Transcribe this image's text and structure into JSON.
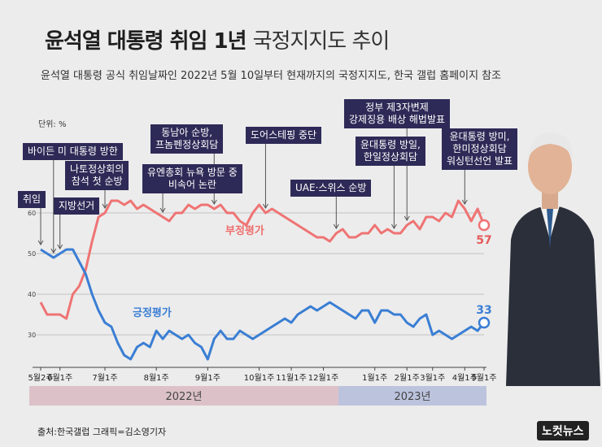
{
  "title_bold": "윤석열 대통령 취임 1년",
  "title_light": "국정지지도 추이",
  "subtitle": "윤석열 대통령 공식 취임날짜인 2022년 5월 10일부터 현재까지의 국정지지도, 한국 갤럽 홈페이지 참조",
  "unit_label": "단위: %",
  "source": "출처:한국갤럽  그래픽=김소영기자",
  "logo": "노컷뉴스",
  "annotations": [
    {
      "id": "ann-inauguration",
      "text": "취임",
      "week": 0
    },
    {
      "id": "ann-biden",
      "text": "바이든 미 대통령 방한",
      "week": 2
    },
    {
      "id": "ann-local-election",
      "text": "지방선거",
      "week": 3
    },
    {
      "id": "ann-nato",
      "text": "나토정상회의\n참석 첫 순방",
      "week": 10
    },
    {
      "id": "ann-un",
      "text": "유엔총회 뉴욕 방문 중\n비속어 논란",
      "week": 19
    },
    {
      "id": "ann-asean",
      "text": "동남아 순방,\n프놈펜정상회담",
      "week": 27
    },
    {
      "id": "ann-doorstep",
      "text": "도어스테핑 중단",
      "week": 35
    },
    {
      "id": "ann-uae",
      "text": "UAE·스위스 순방",
      "week": 46
    },
    {
      "id": "ann-japan",
      "text": "윤대통령 방일,\n한일정상회담",
      "week": 55
    },
    {
      "id": "ann-forced-labor",
      "text": "정부 제3자변제\n강제징용 배상 해법발표",
      "week": 57
    },
    {
      "id": "ann-us-visit",
      "text": "윤대통령 방미,\n한미정상회담\n워싱턴선언 발표",
      "week": 66
    }
  ],
  "chart_data": {
    "type": "line",
    "x_ticks": [
      "5월2주",
      "6월1주",
      "7월1주",
      "8월1주",
      "9월1주",
      "10월1주",
      "11월1주",
      "12월1주",
      "1월1주",
      "2월1주",
      "3월1주",
      "4월1주",
      "5월1주"
    ],
    "y_ticks": [
      30,
      40,
      50,
      60
    ],
    "ylim": [
      23,
      66
    ],
    "years": [
      "2022년",
      "2023년"
    ],
    "series": [
      {
        "name": "부정평가",
        "color": "#ef7373",
        "end_label": "57",
        "values": [
          38,
          35,
          35,
          35,
          34,
          40,
          42,
          46,
          53,
          59,
          60,
          63,
          63,
          62,
          63,
          61,
          62,
          61,
          60,
          59,
          58,
          60,
          60,
          62,
          61,
          62,
          62,
          61,
          62,
          60,
          60,
          58,
          57,
          60,
          62,
          60,
          61,
          60,
          59,
          58,
          57,
          56,
          55,
          54,
          54,
          53,
          55,
          56,
          54,
          54,
          55,
          55,
          57,
          55,
          56,
          55,
          55,
          57,
          58,
          56,
          59,
          59,
          58,
          60,
          59,
          63,
          61,
          58,
          61,
          57
        ]
      },
      {
        "name": "긍정평가",
        "color": "#3a7ed4",
        "end_label": "33",
        "values": [
          51,
          50,
          49,
          50,
          51,
          51,
          48,
          45,
          40,
          36,
          33,
          32,
          28,
          25,
          24,
          27,
          28,
          27,
          31,
          29,
          31,
          30,
          29,
          30,
          28,
          27,
          24,
          29,
          31,
          29,
          29,
          31,
          30,
          29,
          30,
          31,
          32,
          33,
          34,
          33,
          35,
          36,
          37,
          36,
          37,
          38,
          37,
          36,
          35,
          34,
          36,
          36,
          33,
          36,
          36,
          35,
          35,
          33,
          32,
          34,
          35,
          30,
          31,
          30,
          29,
          30,
          31,
          32,
          31,
          33
        ]
      }
    ]
  }
}
